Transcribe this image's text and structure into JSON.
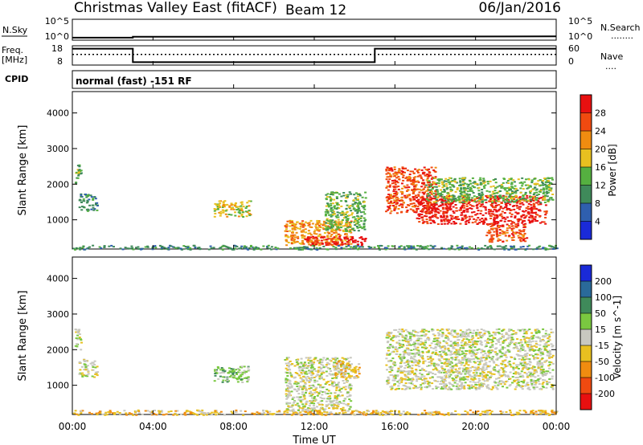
{
  "header": {
    "title": "Christmas Valley East (fitACF)",
    "beam": "Beam 12",
    "date": "06/Jan/2016"
  },
  "panels": {
    "nsky": {
      "left_label": "N.Sky",
      "left_ticks": [
        "10^5",
        "10^0"
      ],
      "right_ticks": [
        "10^5",
        "10^0"
      ],
      "right_label": "N.Search",
      "right_legend": "........"
    },
    "freq": {
      "left_label_1": "Freq.",
      "left_label_2": "[MHz]",
      "left_ticks": [
        "18",
        "8"
      ],
      "right_ticks": [
        "60",
        "0"
      ],
      "right_label": "Nave",
      "right_legend": "....",
      "cpid_label": "CPID",
      "cpid_text": "normal (fast) -151 RF"
    }
  },
  "x_axis": {
    "ticks": [
      "00:00",
      "04:00",
      "08:00",
      "12:00",
      "16:00",
      "20:00",
      "00:00"
    ],
    "label": "Time UT"
  },
  "chart_data": [
    {
      "type": "heatmap",
      "name": "power",
      "ylabel": "Slant Range [km]",
      "y_ticks": [
        "1000",
        "2000",
        "3000",
        "4000"
      ],
      "y_range_km": [
        180,
        4600
      ],
      "x_range_hours": [
        0,
        24
      ],
      "colorbar": {
        "label": "Power [dB]",
        "ticks": [
          "4",
          "8",
          "12",
          "16",
          "20",
          "24",
          "28"
        ],
        "colors": [
          "#1a2ad8",
          "#2f5fae",
          "#3f8a5a",
          "#55b040",
          "#e8c020",
          "#f08c10",
          "#f04a10",
          "#e81010"
        ]
      },
      "regions": [
        {
          "x": [
            0.1,
            0.4
          ],
          "y": [
            2000,
            2600
          ],
          "level": 3
        },
        {
          "x": [
            0.3,
            1.2
          ],
          "y": [
            1250,
            1750
          ],
          "level": 2
        },
        {
          "x": [
            7.0,
            8.8
          ],
          "y": [
            1100,
            1550
          ],
          "level": 4
        },
        {
          "x": [
            10.5,
            13.8
          ],
          "y": [
            300,
            1000
          ],
          "level": 5
        },
        {
          "x": [
            11.5,
            14.5
          ],
          "y": [
            300,
            550
          ],
          "level": 7
        },
        {
          "x": [
            12.5,
            14.5
          ],
          "y": [
            700,
            1800
          ],
          "level": 3
        },
        {
          "x": [
            15.5,
            18.0
          ],
          "y": [
            1200,
            2500
          ],
          "level": 6
        },
        {
          "x": [
            17.0,
            23.5
          ],
          "y": [
            900,
            1700
          ],
          "level": 7
        },
        {
          "x": [
            20.5,
            22.5
          ],
          "y": [
            400,
            900
          ],
          "level": 6
        },
        {
          "x": [
            17.5,
            23.8
          ],
          "y": [
            1500,
            2200
          ],
          "level": 3
        },
        {
          "x": [
            0.0,
            24.0
          ],
          "y": [
            180,
            300
          ],
          "level": 2
        }
      ]
    },
    {
      "type": "heatmap",
      "name": "velocity",
      "ylabel": "Slant Range [km]",
      "y_ticks": [
        "1000",
        "2000",
        "3000",
        "4000"
      ],
      "y_range_km": [
        180,
        4600
      ],
      "x_range_hours": [
        0,
        24
      ],
      "colorbar": {
        "label": "Velocity [m s^-1]",
        "ticks": [
          "200",
          "100",
          "50",
          "15",
          "-15",
          "-50",
          "-100",
          "-200"
        ],
        "colors": [
          "#1a2ad8",
          "#2a6a9a",
          "#3f8a5a",
          "#7ac840",
          "#c8c8c0",
          "#e8c020",
          "#f08c10",
          "#f04a10",
          "#e81010"
        ]
      },
      "regions": [
        {
          "x": [
            0.1,
            0.4
          ],
          "y": [
            2000,
            2600
          ],
          "level": 4
        },
        {
          "x": [
            0.3,
            1.2
          ],
          "y": [
            1250,
            1750
          ],
          "level": 4
        },
        {
          "x": [
            7.0,
            8.8
          ],
          "y": [
            1100,
            1550
          ],
          "level": 3
        },
        {
          "x": [
            10.5,
            13.8
          ],
          "y": [
            300,
            1800
          ],
          "level": 4
        },
        {
          "x": [
            13.0,
            14.2
          ],
          "y": [
            1200,
            1700
          ],
          "level": 5
        },
        {
          "x": [
            15.5,
            23.8
          ],
          "y": [
            900,
            2600
          ],
          "level": 4
        },
        {
          "x": [
            0.0,
            24.0
          ],
          "y": [
            180,
            320
          ],
          "level": 5
        }
      ]
    }
  ],
  "nsky_series": {
    "x": [
      0,
      3,
      3,
      24
    ],
    "y_log": [
      0.6,
      0.6,
      0.8,
      0.9
    ]
  },
  "freq_series": {
    "x": [
      0,
      3,
      3,
      15,
      15,
      24
    ],
    "mhz": [
      16.5,
      16.5,
      9.5,
      9.5,
      16.5,
      16.5
    ]
  },
  "nave_series": {
    "x": [
      0,
      24
    ],
    "value": [
      33,
      33
    ]
  }
}
